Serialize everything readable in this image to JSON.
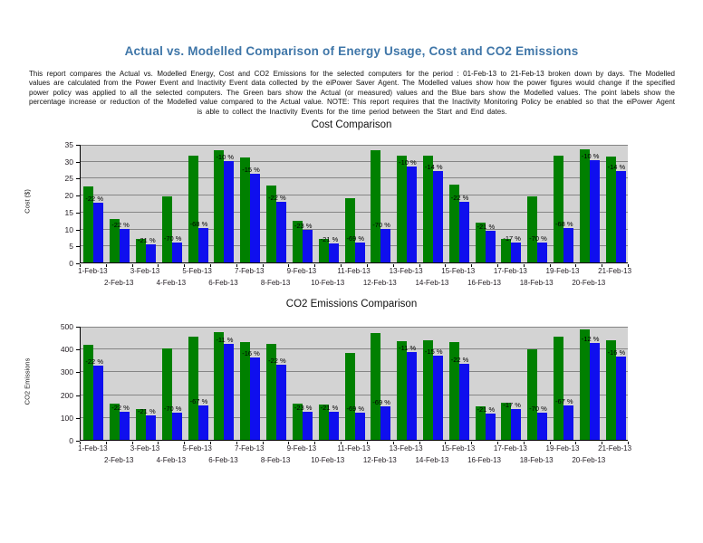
{
  "page": {
    "title": "Actual vs. Modelled Comparison of Energy Usage, Cost and CO2 Emissions",
    "title_color": "#3f76a8",
    "description": "This report compares the Actual vs. Modelled Energy, Cost and CO2 Emissions for the selected computers for the period : 01-Feb-13 to 21-Feb-13 broken down by days. The Modelled values are calculated from the Power Event and Inactivity Event data collected by the eiPower Saver Agent. The Modelled values show how the power figures would change if the specified power policy was applied to all the selected computers. The Green bars show the Actual (or measured) values and the Blue bars show the Modelled values. The point labels show the percentage increase or reduction of the Modelled value compared to the Actual value. NOTE: This report requires that the Inactivity Monitoring Policy be enabled so that the eiPower Agent is able to collect the Inactivity Events for the time period between the Start and End dates."
  },
  "colors": {
    "actual": "#008000",
    "modelled": "#0f0fee",
    "plot_bg": "#d3d3d3",
    "gridline": "#858585",
    "title_blue": "#3f76a8"
  },
  "chart_data": [
    {
      "type": "bar",
      "title": "Cost Comparison",
      "ylabel": "Cost ($)",
      "ylim": [
        0,
        35
      ],
      "yticks": [
        0,
        5,
        10,
        15,
        20,
        25,
        30,
        35
      ],
      "grid": true,
      "legend": "none",
      "categories": [
        "1-Feb-13",
        "2-Feb-13",
        "3-Feb-13",
        "4-Feb-13",
        "5-Feb-13",
        "6-Feb-13",
        "7-Feb-13",
        "8-Feb-13",
        "9-Feb-13",
        "10-Feb-13",
        "11-Feb-13",
        "12-Feb-13",
        "13-Feb-13",
        "14-Feb-13",
        "15-Feb-13",
        "16-Feb-13",
        "17-Feb-13",
        "18-Feb-13",
        "19-Feb-13",
        "20-Feb-13",
        "21-Feb-13"
      ],
      "series": [
        {
          "name": "Actual",
          "color_key": "actual",
          "values": [
            22.4,
            12.8,
            6.9,
            19.5,
            31.6,
            33.2,
            30.9,
            22.8,
            12.3,
            7.0,
            18.9,
            33.0,
            31.4,
            31.5,
            23.0,
            11.8,
            7.0,
            19.4,
            31.5,
            33.5,
            31.3
          ]
        },
        {
          "name": "Modelled",
          "color_key": "modelled",
          "values": [
            17.5,
            10.0,
            5.4,
            5.9,
            10.1,
            29.9,
            26.3,
            17.9,
            9.5,
            5.5,
            5.9,
            9.9,
            28.3,
            27.1,
            17.9,
            9.3,
            5.8,
            5.8,
            10.1,
            30.1,
            26.9
          ]
        }
      ],
      "point_labels": [
        "-22 %",
        "-22 %",
        "-21 %",
        "-70 %",
        "-68 %",
        "-10 %",
        "-15 %",
        "-22 %",
        "-23 %",
        "-21 %",
        "-69 %",
        "-70 %",
        "-10 %",
        "-14 %",
        "-22 %",
        "-21 %",
        "-17 %",
        "-70 %",
        "-68 %",
        "-10 %",
        "-14 %"
      ]
    },
    {
      "type": "bar",
      "title": "CO2 Emissions Comparison",
      "ylabel": "CO2 Emissions",
      "ylim": [
        0,
        500
      ],
      "yticks": [
        0,
        100,
        200,
        300,
        400,
        500
      ],
      "grid": true,
      "legend": "none",
      "categories": [
        "1-Feb-13",
        "2-Feb-13",
        "3-Feb-13",
        "4-Feb-13",
        "5-Feb-13",
        "6-Feb-13",
        "7-Feb-13",
        "8-Feb-13",
        "9-Feb-13",
        "10-Feb-13",
        "11-Feb-13",
        "12-Feb-13",
        "13-Feb-13",
        "14-Feb-13",
        "15-Feb-13",
        "16-Feb-13",
        "17-Feb-13",
        "18-Feb-13",
        "19-Feb-13",
        "20-Feb-13",
        "21-Feb-13"
      ],
      "series": [
        {
          "name": "Actual",
          "color_key": "actual",
          "values": [
            417,
            159,
            135,
            401,
            452,
            472,
            430,
            421,
            160,
            155,
            380,
            470,
            432,
            437,
            429,
            147,
            163,
            397,
            452,
            484,
            437
          ]
        },
        {
          "name": "Modelled",
          "color_key": "modelled",
          "values": [
            325,
            124,
            107,
            120,
            149,
            420,
            361,
            328,
            123,
            122,
            118,
            146,
            384,
            371,
            335,
            116,
            135,
            119,
            149,
            426,
            367
          ]
        }
      ],
      "point_labels": [
        "-22 %",
        "-22 %",
        "-21 %",
        "-70 %",
        "-67 %",
        "-11 %",
        "-16 %",
        "-22 %",
        "-23 %",
        "-21 %",
        "-69 %",
        "-69 %",
        "-11 %",
        "-15 %",
        "-22 %",
        "-21 %",
        "-17 %",
        "-70 %",
        "-67 %",
        "-12 %",
        "-16 %"
      ]
    }
  ]
}
